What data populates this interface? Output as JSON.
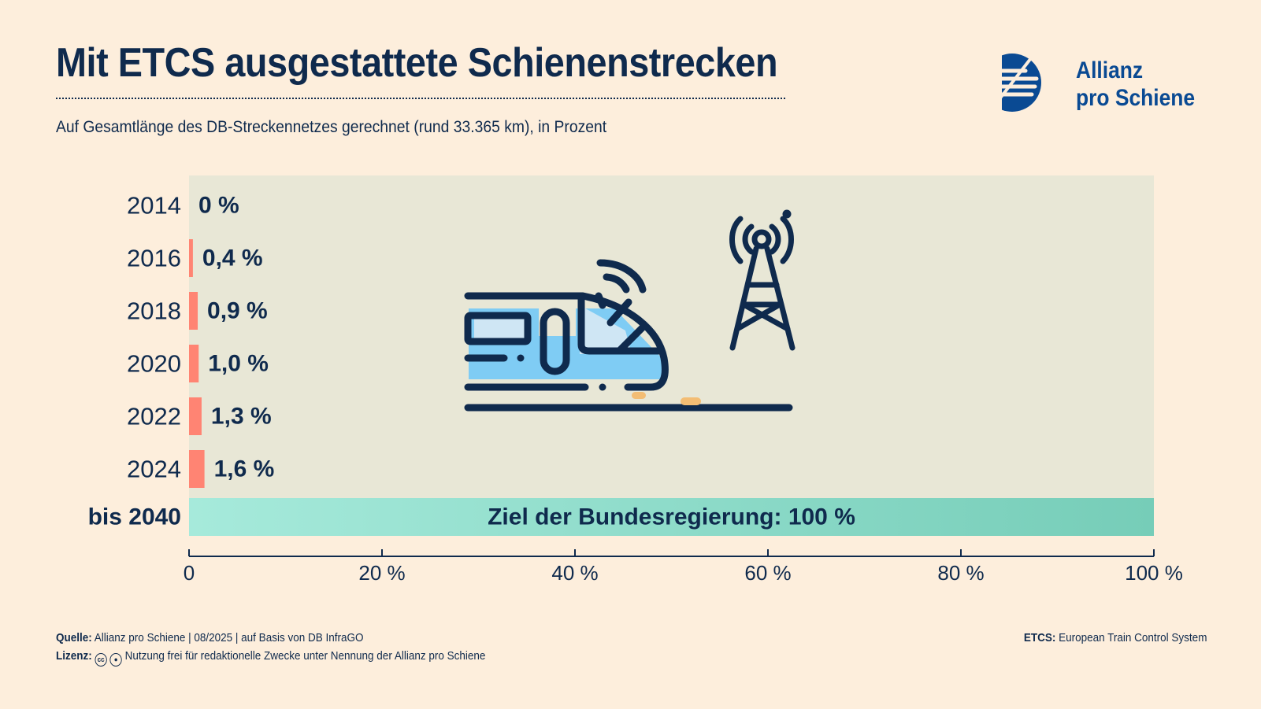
{
  "header": {
    "title": "Mit ETCS ausgestattete Schienenstrecken",
    "subtitle": "Auf Gesamtlänge des DB-Streckennetzes gerechnet (rund 33.365 km), in Prozent"
  },
  "logo": {
    "line1": "Allianz",
    "line2": "pro Schiene",
    "icon": "allianz-pro-schiene-logo-icon"
  },
  "chart_data": {
    "type": "bar",
    "orientation": "horizontal",
    "title": "Mit ETCS ausgestattete Schienenstrecken",
    "subtitle": "Auf Gesamtlänge des DB-Streckennetzes gerechnet (rund 33.365 km), in Prozent",
    "categories": [
      "2014",
      "2016",
      "2018",
      "2020",
      "2022",
      "2024"
    ],
    "values": [
      0,
      0.4,
      0.9,
      1.0,
      1.3,
      1.6
    ],
    "value_labels": [
      "0 %",
      "0,4 %",
      "0,9 %",
      "1,0 %",
      "1,3 %",
      "1,6 %"
    ],
    "target": {
      "category": "bis 2040",
      "value": 100,
      "label": "Ziel der Bundesregierung: 100 %"
    },
    "xlim": [
      0,
      100
    ],
    "xticks": [
      0,
      20,
      40,
      60,
      80,
      100
    ],
    "xtick_labels": [
      "0",
      "20 %",
      "40 %",
      "60 %",
      "80 %",
      "100 %"
    ],
    "xlabel": "",
    "ylabel": "",
    "colors": {
      "bar": "#ff8473",
      "target_start": "#a6eadb",
      "target_end": "#76cdb8",
      "plot_bg": "#e8e7d6",
      "text": "#0f2a4d"
    }
  },
  "illustration": {
    "icons": [
      "train-icon",
      "radio-tower-icon"
    ]
  },
  "footer": {
    "source_label": "Quelle:",
    "source_text": "Allianz pro Schiene | 08/2025 | auf Basis von DB InfraGO",
    "license_label": "Lizenz:",
    "license_icons": [
      "creative-commons-icon",
      "attribution-icon"
    ],
    "license_text": "Nutzung frei für redaktionelle Zwecke unter Nennung der Allianz pro Schiene",
    "etcs_label": "ETCS:",
    "etcs_text": "European Train Control System"
  }
}
